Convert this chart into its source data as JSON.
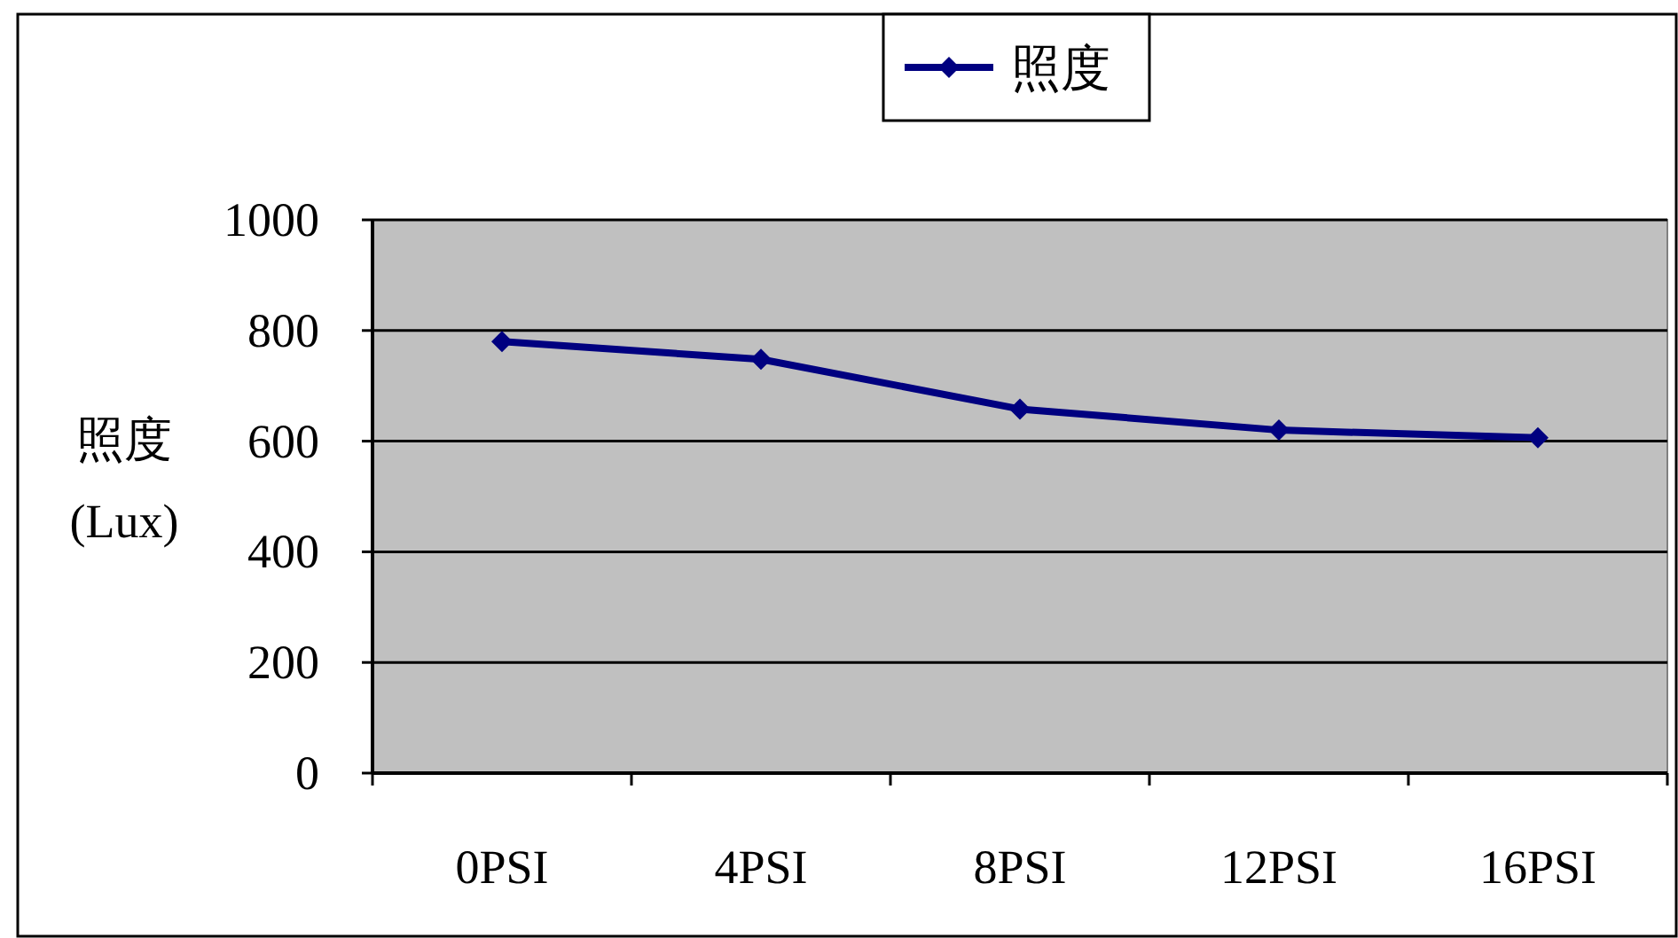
{
  "chart_data": {
    "type": "line",
    "ylabel": "照度\n(Lux)",
    "categories": [
      "0PSI",
      "4PSI",
      "8PSI",
      "12PSI",
      "16PSI"
    ],
    "series": [
      {
        "name": "照度",
        "color": "#000080",
        "values": [
          780,
          748,
          658,
          620,
          606
        ]
      }
    ],
    "ylim": [
      0,
      1000
    ],
    "yticks": [
      0,
      200,
      400,
      600,
      800,
      1000
    ],
    "grid": "y",
    "legend": "top",
    "marker": "diamond",
    "line_style": "solid"
  }
}
